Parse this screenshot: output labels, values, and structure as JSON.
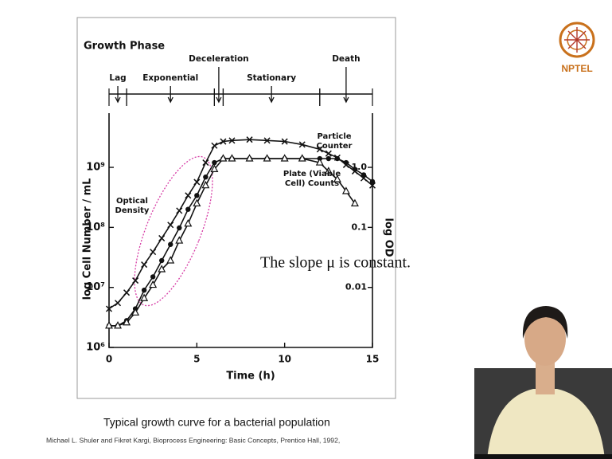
{
  "chart_data": {
    "type": "line",
    "title": "Growth Phase",
    "phases": [
      {
        "name": "Lag",
        "start": 0,
        "end": 1
      },
      {
        "name": "Exponential",
        "start": 1,
        "end": 6
      },
      {
        "name": "Deceleration",
        "start": 6,
        "end": 6.5
      },
      {
        "name": "Stationary",
        "start": 6.5,
        "end": 12
      },
      {
        "name": "Death",
        "start": 12,
        "end": 15
      }
    ],
    "x_label": "Time (h)",
    "y_label": "log Cell Number / mL",
    "y2_label": "log OD",
    "log_y": true,
    "xlim": [
      0,
      15
    ],
    "xticks": [
      0,
      5,
      10,
      15
    ],
    "ylim": [
      1000000,
      8000000000
    ],
    "yticks": [
      {
        "value": 1000000,
        "label": "10⁶"
      },
      {
        "value": 10000000,
        "label": "10⁷"
      },
      {
        "value": 100000000,
        "label": "10⁸"
      },
      {
        "value": 1000000000,
        "label": "10⁹"
      }
    ],
    "y2lim": [
      0.001,
      8
    ],
    "y2ticks": [
      0.01,
      0.1,
      {
        "value": 1,
        "label": "1.0"
      }
    ],
    "x": [
      0,
      0.5,
      1,
      1.5,
      2,
      2.5,
      3,
      3.5,
      4,
      4.5,
      5,
      5.5,
      6,
      6.5,
      7,
      8,
      9,
      10,
      11,
      12,
      12.5,
      13,
      13.5,
      14,
      14.5,
      15
    ],
    "series": [
      {
        "name": "Optical Density",
        "color": "#111111",
        "marker": "x",
        "axis": "y2",
        "values": [
          0.0044,
          0.0055,
          0.0082,
          0.013,
          0.024,
          0.039,
          0.066,
          0.11,
          0.19,
          0.34,
          0.57,
          1.2,
          2.3,
          2.7,
          2.8,
          2.9,
          2.8,
          2.7,
          2.4,
          2.0,
          1.7,
          1.45,
          1.1,
          0.86,
          0.66,
          0.5
        ]
      },
      {
        "name": "Particle Counter",
        "color": "#111111",
        "marker": "circle",
        "values": [
          2300000,
          2300000,
          2800000,
          4400000,
          9000000,
          15000000,
          28000000,
          52000000,
          98000000,
          200000000,
          340000000,
          690000000,
          1200000000,
          1400000000,
          1400000000,
          1400000000,
          1400000000,
          1400000000,
          1400000000,
          1400000000,
          1400000000,
          1400000000,
          1200000000,
          930000000,
          750000000,
          580000000
        ]
      },
      {
        "name": "Plate (Viable Cell) Counts",
        "color": "#111111",
        "marker": "triangle",
        "values": [
          2300000,
          2300000,
          2600000,
          3800000,
          6600000,
          11000000,
          20000000,
          28000000,
          60000000,
          115000000,
          250000000,
          500000000,
          930000000,
          1400000000,
          1400000000,
          1400000000,
          1400000000,
          1400000000,
          1400000000,
          1200000000,
          860000000,
          630000000,
          400000000,
          250000000,
          null,
          null
        ]
      }
    ],
    "annotation": "The slope μ is constant."
  },
  "slide": {
    "logo": "NPTEL",
    "caption": "Typical growth curve for a bacterial population",
    "citation": "Michael L. Shuler and Fikret Kargi, Bioprocess Engineering: Basic Concepts, Prentice Hall, 1992,"
  }
}
